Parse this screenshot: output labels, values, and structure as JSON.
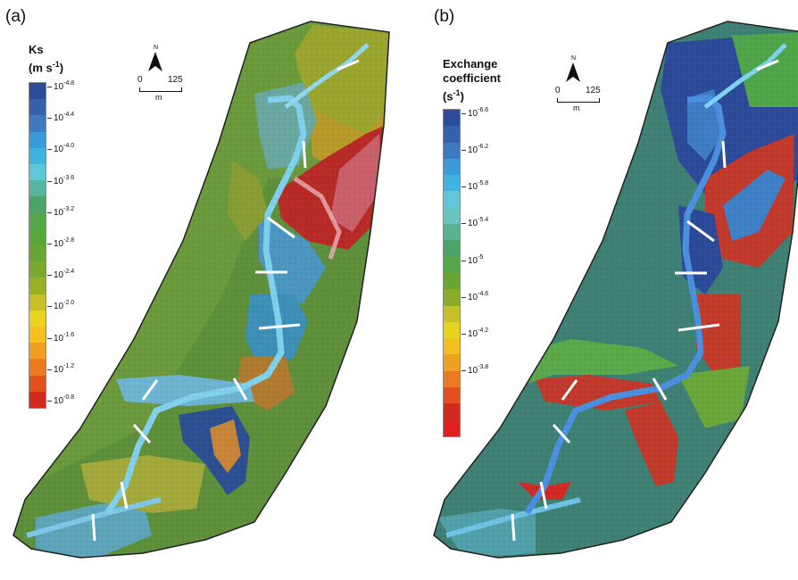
{
  "panels": [
    {
      "label": "(a)",
      "legend": {
        "title_line1": "Ks",
        "title_line2": "(m s",
        "title_line2_sup": "-1",
        "title_line2_end": ")",
        "colors": [
          "#2b4c9a",
          "#3761ad",
          "#3f79c0",
          "#3a9bd8",
          "#3fb4e0",
          "#5ec8d8",
          "#55b7a0",
          "#4ea36a",
          "#55a84a",
          "#5aa83a",
          "#6aa634",
          "#7aa830",
          "#9ab028",
          "#c8c028",
          "#e8d420",
          "#f2c020",
          "#f0a020",
          "#ec7a20",
          "#e25020",
          "#d42a1e"
        ],
        "ticks": [
          {
            "base": "10",
            "exp": "-4.8"
          },
          {
            "base": "10",
            "exp": "-4.4"
          },
          {
            "base": "10",
            "exp": "-4.0"
          },
          {
            "base": "10",
            "exp": "-3.6"
          },
          {
            "base": "10",
            "exp": "-3.2"
          },
          {
            "base": "10",
            "exp": "-2.8"
          },
          {
            "base": "10",
            "exp": "-2.4"
          },
          {
            "base": "10",
            "exp": "-2.0"
          },
          {
            "base": "10",
            "exp": "-1.6"
          },
          {
            "base": "10",
            "exp": "-1.2"
          },
          {
            "base": "10",
            "exp": "-0.8"
          }
        ]
      },
      "scale": {
        "zero": "0",
        "max": "125",
        "unit": "m",
        "north": "N"
      }
    },
    {
      "label": "(b)",
      "legend": {
        "title_line1": "Exchange",
        "title_line2": "coefficient",
        "title_line3": "(s",
        "title_line3_sup": "-1",
        "title_line3_end": ")",
        "colors": [
          "#2b4c9a",
          "#3761ad",
          "#3f79c0",
          "#3a9bd8",
          "#3fb4e0",
          "#5ec8d8",
          "#6ac4c0",
          "#5ab390",
          "#4ea36a",
          "#55a84a",
          "#6aa634",
          "#8aae2c",
          "#c8c028",
          "#e8d420",
          "#f2c020",
          "#f0a020",
          "#ec7a20",
          "#e25020",
          "#d42a1e",
          "#e02020"
        ],
        "ticks": [
          {
            "base": "10",
            "exp": "-6.6"
          },
          {
            "base": "10",
            "exp": "-6.2"
          },
          {
            "base": "10",
            "exp": "-5.8"
          },
          {
            "base": "10",
            "exp": "-5.4"
          },
          {
            "base": "10",
            "exp": "-5"
          },
          {
            "base": "10",
            "exp": "-4.6"
          },
          {
            "base": "10",
            "exp": "-4.2"
          },
          {
            "base": "10",
            "exp": "-3.8"
          }
        ]
      },
      "scale": {
        "zero": "0",
        "max": "125",
        "unit": "m",
        "north": "N"
      }
    }
  ]
}
